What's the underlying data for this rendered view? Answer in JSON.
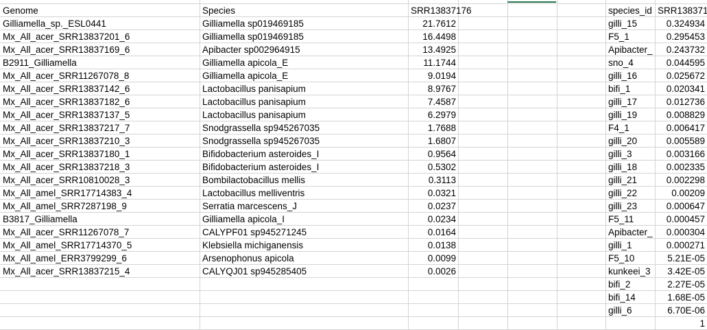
{
  "left_table": {
    "headers": [
      "Genome",
      "Species",
      "SRR13837176"
    ],
    "rows": [
      [
        "Gilliamella_sp._ESL0441",
        "Gilliamella sp019469185",
        "21.7612"
      ],
      [
        "Mx_All_acer_SRR13837201_6",
        "Gilliamella sp019469185",
        "16.4498"
      ],
      [
        "Mx_All_acer_SRR13837169_6",
        "Apibacter sp002964915",
        "13.4925"
      ],
      [
        "B2911_Gilliamella",
        "Gilliamella apicola_E",
        "11.1744"
      ],
      [
        "Mx_All_acer_SRR11267078_8",
        "Gilliamella apicola_E",
        "9.0194"
      ],
      [
        "Mx_All_acer_SRR13837142_6",
        "Lactobacillus panisapium",
        "8.9767"
      ],
      [
        "Mx_All_acer_SRR13837182_6",
        "Lactobacillus panisapium",
        "7.4587"
      ],
      [
        "Mx_All_acer_SRR13837137_5",
        "Lactobacillus panisapium",
        "6.2979"
      ],
      [
        "Mx_All_acer_SRR13837217_7",
        "Snodgrassella sp945267035",
        "1.7688"
      ],
      [
        "Mx_All_acer_SRR13837210_3",
        "Snodgrassella sp945267035",
        "1.6807"
      ],
      [
        "Mx_All_acer_SRR13837180_1",
        "Bifidobacterium asteroides_I",
        "0.9564"
      ],
      [
        "Mx_All_acer_SRR13837218_3",
        "Bifidobacterium asteroides_I",
        "0.5302"
      ],
      [
        "Mx_All_acer_SRR10810028_3",
        "Bombilactobacillus mellis",
        "0.3113"
      ],
      [
        "Mx_All_amel_SRR17714383_4",
        "Lactobacillus melliventris",
        "0.0321"
      ],
      [
        "Mx_All_amel_SRR7287198_9",
        "Serratia marcescens_J",
        "0.0237"
      ],
      [
        "B3817_Gilliamella",
        "Gilliamella apicola_I",
        "0.0234"
      ],
      [
        "Mx_All_acer_SRR11267078_7",
        "CALYPF01 sp945271245",
        "0.0164"
      ],
      [
        "Mx_All_amel_SRR17714370_5",
        "Klebsiella michiganensis",
        "0.0138"
      ],
      [
        "Mx_All_amel_ERR3799299_6",
        "Arsenophonus apicola",
        "0.0099"
      ],
      [
        "Mx_All_acer_SRR13837215_4",
        "CALYQJ01 sp945285405",
        "0.0026"
      ]
    ]
  },
  "right_table": {
    "headers": [
      "species_id",
      "SRR138371"
    ],
    "rows": [
      [
        "gilli_15",
        "0.324934"
      ],
      [
        "F5_1",
        "0.295453"
      ],
      [
        "Apibacter_",
        "0.243732"
      ],
      [
        "sno_4",
        "0.044595"
      ],
      [
        "gilli_16",
        "0.025672"
      ],
      [
        "bifi_1",
        "0.020341"
      ],
      [
        "gilli_17",
        "0.012736"
      ],
      [
        "gilli_19",
        "0.008829"
      ],
      [
        "F4_1",
        "0.006417"
      ],
      [
        "gilli_20",
        "0.005589"
      ],
      [
        "gilli_3",
        "0.003166"
      ],
      [
        "gilli_18",
        "0.002335"
      ],
      [
        "gilli_21",
        "0.002298"
      ],
      [
        "gilli_22",
        "0.00209"
      ],
      [
        "gilli_23",
        "0.000647"
      ],
      [
        "F5_11",
        "0.000457"
      ],
      [
        "Apibacter_",
        "0.000304"
      ],
      [
        "gilli_1",
        "0.000271"
      ],
      [
        "F5_10",
        "5.21E-05"
      ],
      [
        "kunkeei_3",
        "3.42E-05"
      ],
      [
        "bifi_2",
        "2.27E-05"
      ],
      [
        "bifi_14",
        "1.68E-05"
      ],
      [
        "gilli_6",
        "6.70E-06"
      ],
      [
        "",
        "1"
      ]
    ]
  }
}
